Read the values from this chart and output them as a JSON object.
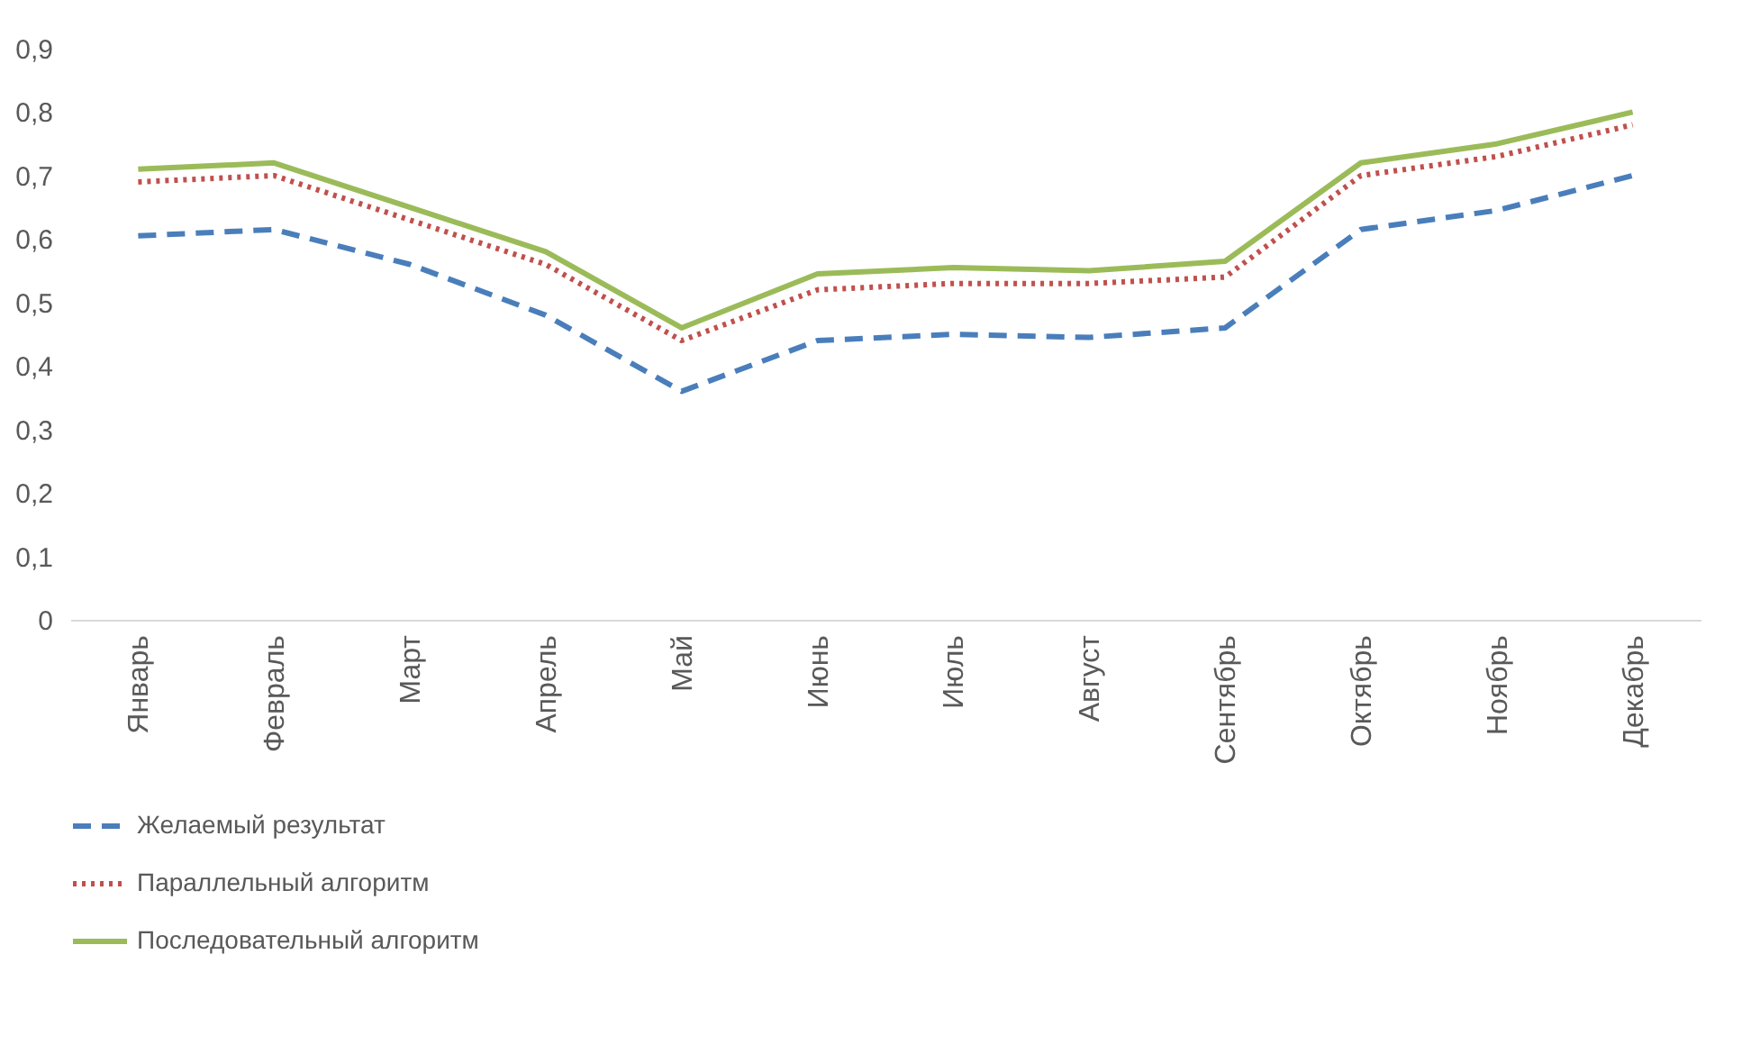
{
  "chart_data": {
    "type": "line",
    "categories": [
      "Январь",
      "Февраль",
      "Март",
      "Апрель",
      "Май",
      "Июнь",
      "Июль",
      "Август",
      "Сентябрь",
      "Октябрь",
      "Ноябрь",
      "Декабрь"
    ],
    "series": [
      {
        "name": "Желаемый результат",
        "color": "#4a7ebb",
        "line_style": "dashed",
        "values": [
          0.605,
          0.615,
          0.56,
          0.48,
          0.36,
          0.44,
          0.45,
          0.445,
          0.46,
          0.615,
          0.645,
          0.7
        ]
      },
      {
        "name": "Параллельный алгоритм",
        "color": "#c0504d",
        "line_style": "dotted",
        "values": [
          0.69,
          0.7,
          0.63,
          0.56,
          0.44,
          0.52,
          0.53,
          0.53,
          0.54,
          0.7,
          0.73,
          0.78
        ]
      },
      {
        "name": "Последовательный алгоритм",
        "color": "#9bbb59",
        "line_style": "solid",
        "values": [
          0.71,
          0.72,
          0.65,
          0.58,
          0.46,
          0.545,
          0.555,
          0.55,
          0.565,
          0.72,
          0.75,
          0.8
        ]
      }
    ],
    "ylim": [
      0,
      0.9
    ],
    "yticks": [
      {
        "value": 0,
        "label": "0"
      },
      {
        "value": 0.1,
        "label": "0,1"
      },
      {
        "value": 0.2,
        "label": "0,2"
      },
      {
        "value": 0.3,
        "label": "0,3"
      },
      {
        "value": 0.4,
        "label": "0,4"
      },
      {
        "value": 0.5,
        "label": "0,5"
      },
      {
        "value": 0.6,
        "label": "0,6"
      },
      {
        "value": 0.7,
        "label": "0,7"
      },
      {
        "value": 0.8,
        "label": "0,8"
      },
      {
        "value": 0.9,
        "label": "0,9"
      }
    ],
    "grid": false,
    "legend": "bottom",
    "marker": "none"
  }
}
